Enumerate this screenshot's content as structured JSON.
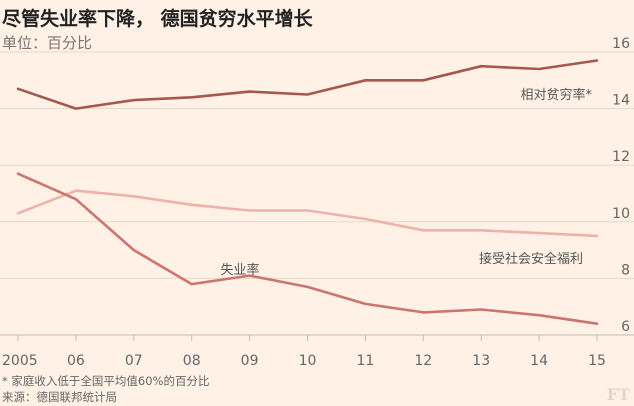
{
  "chart_data": {
    "type": "line",
    "title": "尽管失业率下降， 德国贫穷水平增长",
    "subtitle": "单位：百分比",
    "x": [
      2005,
      2006,
      2007,
      2008,
      2009,
      2010,
      2011,
      2012,
      2013,
      2014,
      2015
    ],
    "x_tick_labels": [
      "2005",
      "06",
      "07",
      "08",
      "09",
      "10",
      "11",
      "12",
      "13",
      "14",
      "15"
    ],
    "ylim": [
      6,
      16
    ],
    "y_ticks": [
      6,
      8,
      10,
      12,
      14,
      16
    ],
    "y_axis_position": "right",
    "grid": true,
    "series": [
      {
        "name": "相对贫穷率*",
        "values": [
          14.7,
          14.0,
          14.3,
          14.4,
          14.6,
          14.5,
          15.0,
          15.0,
          15.5,
          15.4,
          15.7
        ],
        "color": "#a6584e"
      },
      {
        "name": "接受社会安全福利",
        "values": [
          10.3,
          11.1,
          10.9,
          10.6,
          10.4,
          10.4,
          10.1,
          9.7,
          9.7,
          9.6,
          9.5
        ],
        "color": "#edb3aa"
      },
      {
        "name": "失业率",
        "values": [
          11.7,
          10.8,
          9.0,
          7.8,
          8.1,
          7.7,
          7.1,
          6.8,
          6.9,
          6.7,
          6.4
        ],
        "color": "#cc7470"
      }
    ]
  },
  "footnote": "* 家庭收入低于全国平均值60%的百分比",
  "source": "来源：德国联邦统计局",
  "logo": "FT"
}
